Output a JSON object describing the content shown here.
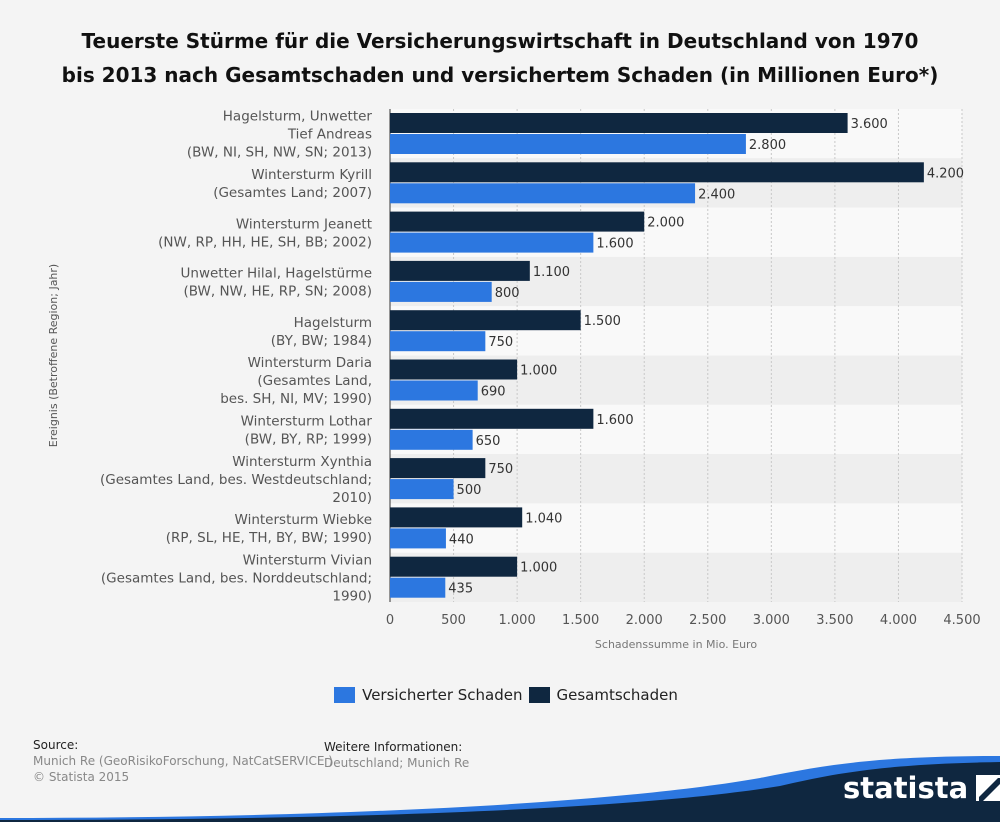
{
  "title": "Teuerste Stürme für die Versicherungswirtschaft in Deutschland von 1970 bis 2013 nach Gesamtschaden und versichertem Schaden (in Millionen Euro*)",
  "title_lines": [
    "Teuerste Stürme für die Versicherungswirtschaft in Deutschland von 1970",
    "bis 2013 nach Gesamtschaden und versichertem Schaden (in Millionen Euro*)"
  ],
  "chart_data": {
    "type": "bar",
    "orientation": "horizontal",
    "title": "Teuerste Stürme für die Versicherungswirtschaft in Deutschland von 1970 bis 2013 nach Gesamtschaden und versichertem Schaden (in Millionen Euro*)",
    "xlabel": "Schadenssumme in Mio. Euro",
    "ylabel": "Ereignis (Betroffene Region; Jahr)",
    "xlim": [
      0,
      4500
    ],
    "xticks": [
      0,
      500,
      1000,
      1500,
      2000,
      2500,
      3000,
      3500,
      4000,
      4500
    ],
    "xtick_labels": [
      "0",
      "500",
      "1.000",
      "1.500",
      "2.000",
      "2.500",
      "3.000",
      "3.500",
      "4.000",
      "4.500"
    ],
    "grid": true,
    "legend_position": "bottom",
    "categories": [
      "Hagelsturm, Unwetter Tief Andreas (BW, NI, SH, NW, SN; 2013)",
      "Wintersturm Kyrill (Gesamtes Land; 2007)",
      "Wintersturm Jeanett (NW, RP, HH, HE, SH, BB; 2002)",
      "Unwetter Hilal, Hagelstürme (BW, NW, HE, RP, SN; 2008)",
      "Hagelsturm (BY, BW; 1984)",
      "Wintersturm Daria (Gesamtes Land, bes. SH, NI, MV; 1990)",
      "Wintersturm Lothar (BW, BY, RP; 1999)",
      "Wintersturm Xynthia (Gesamtes Land, bes. Westdeutschland; 2010)",
      "Wintersturm Wiebke (RP, SL, HE, TH, BY, BW; 1990)",
      "Wintersturm Vivian (Gesamtes Land, bes. Norddeutschland; 1990)"
    ],
    "category_label_lines": [
      [
        "Hagelsturm, Unwetter",
        "Tief Andreas",
        "(BW, NI, SH, NW, SN; 2013)"
      ],
      [
        "Wintersturm Kyrill",
        "(Gesamtes Land; 2007)"
      ],
      [
        "Wintersturm Jeanett",
        "(NW, RP, HH, HE, SH, BB; 2002)"
      ],
      [
        "Unwetter Hilal, Hagelstürme",
        "(BW, NW, HE, RP, SN; 2008)"
      ],
      [
        "Hagelsturm",
        "(BY, BW; 1984)"
      ],
      [
        "Wintersturm Daria",
        "(Gesamtes Land,",
        "bes. SH, NI, MV; 1990)"
      ],
      [
        "Wintersturm Lothar",
        "(BW, BY, RP; 1999)"
      ],
      [
        "Wintersturm Xynthia",
        "(Gesamtes Land, bes. Westdeutschland;",
        "2010)"
      ],
      [
        "Wintersturm Wiebke",
        "(RP, SL, HE, TH, BY, BW; 1990)"
      ],
      [
        "Wintersturm Vivian",
        "(Gesamtes Land, bes. Norddeutschland;",
        "1990)"
      ]
    ],
    "series": [
      {
        "name": "Gesamtschaden",
        "color": "#0f2740",
        "values": [
          3600,
          4200,
          2000,
          1100,
          1500,
          1000,
          1600,
          750,
          1040,
          1000
        ],
        "labels": [
          "3.600",
          "4.200",
          "2.000",
          "1.100",
          "1.500",
          "1.000",
          "1.600",
          "750",
          "1.040",
          "1.000"
        ]
      },
      {
        "name": "Versicherter Schaden",
        "color": "#2c77e0",
        "values": [
          2800,
          2400,
          1600,
          800,
          750,
          690,
          650,
          500,
          440,
          435
        ],
        "labels": [
          "2.800",
          "2.400",
          "1.600",
          "800",
          "750",
          "690",
          "650",
          "500",
          "440",
          "435"
        ]
      }
    ]
  },
  "legend": {
    "items": [
      {
        "label": "Versicherter Schaden",
        "color": "#2c77e0"
      },
      {
        "label": "Gesamtschaden",
        "color": "#0f2740"
      }
    ]
  },
  "source": {
    "heading": "Source:",
    "line1": "Munich Re (GeoRisikoForschung, NatCatSERVICE )",
    "line2": "© Statista 2015"
  },
  "info": {
    "heading": "Weitere Informationen:",
    "line1": "Deutschland; Munich Re"
  },
  "brand": {
    "name": "statista",
    "dark_color": "#0f2740",
    "accent_color": "#2c77e0"
  }
}
